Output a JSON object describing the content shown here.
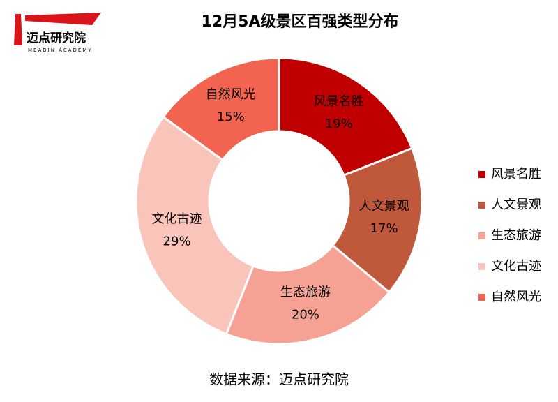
{
  "logo": {
    "name": "迈点研究院",
    "subtitle": "MEADIN ACADEMY"
  },
  "chart_data": {
    "type": "donut",
    "title": "12月5A级景区百强类型分布",
    "categories": [
      "风景名胜",
      "人文景观",
      "生态旅游",
      "文化古迹",
      "自然风光"
    ],
    "values": [
      19,
      17,
      20,
      29,
      15
    ],
    "value_labels": [
      "19%",
      "17%",
      "20%",
      "29%",
      "15%"
    ],
    "colors": [
      "#c00000",
      "#c0583c",
      "#f5a193",
      "#f9c4ba",
      "#f26450"
    ],
    "legend": "right"
  },
  "source": "数据来源：迈点研究院"
}
